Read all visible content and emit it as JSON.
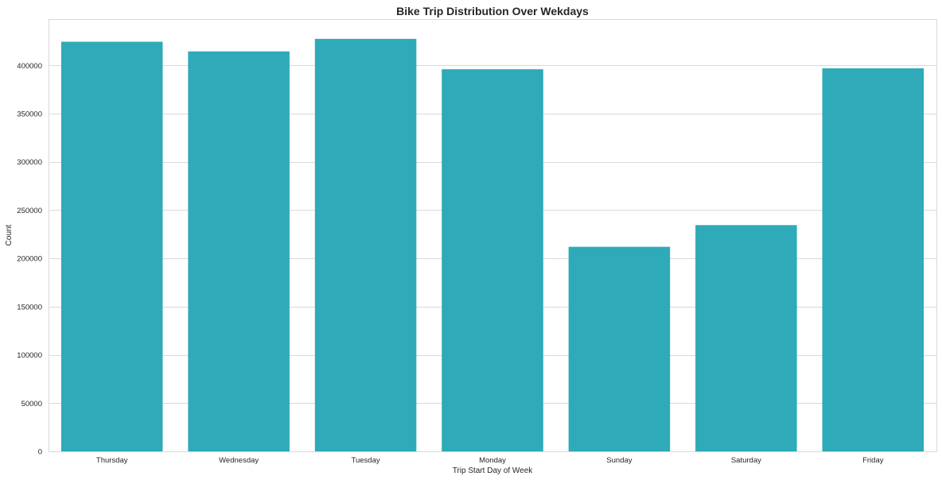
{
  "chart_data": {
    "type": "bar",
    "title": "Bike Trip Distribution Over Wekdays",
    "xlabel": "Trip Start Day of Week",
    "ylabel": "Count",
    "categories": [
      "Thursday",
      "Wednesday",
      "Tuesday",
      "Monday",
      "Sunday",
      "Saturday",
      "Friday"
    ],
    "values": [
      424500,
      414500,
      427500,
      396000,
      212000,
      234500,
      397000
    ],
    "ylim": [
      0,
      448000
    ],
    "yticks": [
      0,
      50000,
      100000,
      150000,
      200000,
      250000,
      300000,
      350000,
      400000
    ],
    "ytick_labels": [
      "0",
      "50000",
      "100000",
      "150000",
      "200000",
      "250000",
      "300000",
      "350000",
      "400000"
    ],
    "grid": true,
    "bar_color": "#2eaab8",
    "grid_color": "#d9d9d9",
    "text_color": "#262626"
  }
}
